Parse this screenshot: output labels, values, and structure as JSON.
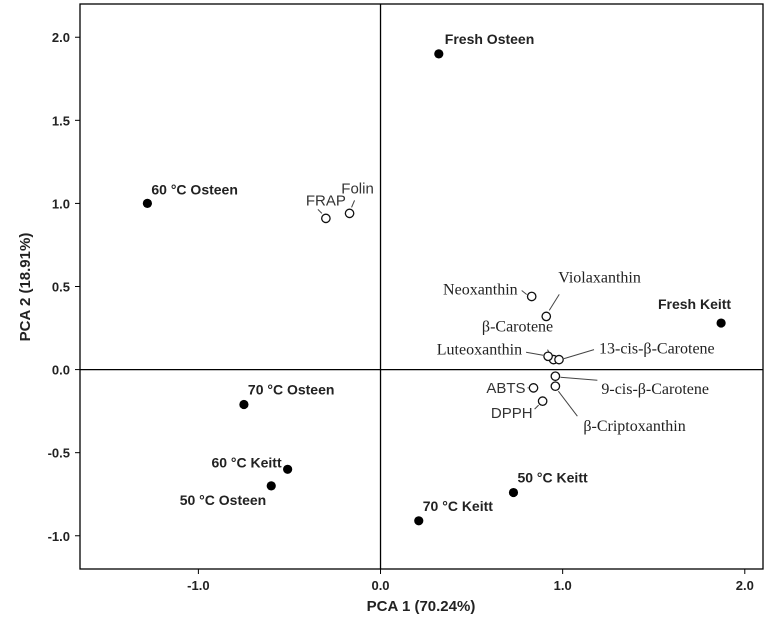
{
  "chart_data": {
    "type": "scatter",
    "xlabel": "PCA 1 (70.24%)",
    "ylabel": "PCA 2 (18.91%)",
    "xlim": [
      -1.65,
      2.1
    ],
    "ylim": [
      -1.2,
      2.2
    ],
    "x_ticks": [
      {
        "value": -1.0,
        "label": "-1.0"
      },
      {
        "value": 0.0,
        "label": "0.0"
      },
      {
        "value": 1.0,
        "label": "1.0"
      },
      {
        "value": 2.0,
        "label": "2.0"
      }
    ],
    "y_ticks": [
      {
        "value": 2.0,
        "label": "2.0"
      },
      {
        "value": 1.5,
        "label": "1.5"
      },
      {
        "value": 1.0,
        "label": "1.0"
      },
      {
        "value": 0.5,
        "label": "0.5"
      },
      {
        "value": 0.0,
        "label": "0.0"
      },
      {
        "value": -0.5,
        "label": "-0.5"
      },
      {
        "value": -1.0,
        "label": "-1.0"
      }
    ],
    "samples": [
      {
        "label": "Fresh Osteen",
        "x": 0.32,
        "y": 1.9
      },
      {
        "label": "60 °C Osteen",
        "x": -1.28,
        "y": 1.0
      },
      {
        "label": "Fresh Keitt",
        "x": 1.87,
        "y": 0.28
      },
      {
        "label": "70 °C Osteen",
        "x": -0.75,
        "y": -0.21
      },
      {
        "label": "60 °C Keitt",
        "x": -0.51,
        "y": -0.6
      },
      {
        "label": "50 °C Osteen",
        "x": -0.6,
        "y": -0.7
      },
      {
        "label": "50 °C Keitt",
        "x": 0.73,
        "y": -0.74
      },
      {
        "label": "70 °C Keitt",
        "x": 0.21,
        "y": -0.91
      }
    ],
    "variables": [
      {
        "label": "FRAP",
        "x": -0.3,
        "y": 0.91
      },
      {
        "label": "Folin",
        "x": -0.17,
        "y": 0.94
      },
      {
        "label": "Neoxanthin",
        "x": 0.83,
        "y": 0.44
      },
      {
        "label": "Violaxanthin",
        "x": 0.91,
        "y": 0.32
      },
      {
        "label": "β-Carotene",
        "x": 0.95,
        "y": 0.06
      },
      {
        "label": "Luteoxanthin",
        "x": 0.92,
        "y": 0.08
      },
      {
        "label": "13-cis-β-Carotene",
        "x": 0.98,
        "y": 0.06
      },
      {
        "label": "ABTS",
        "x": 0.84,
        "y": -0.11
      },
      {
        "label": "9-cis-β-Carotene",
        "x": 0.96,
        "y": -0.04
      },
      {
        "label": "DPPH",
        "x": 0.89,
        "y": -0.19
      },
      {
        "label": "β-Criptoxanthin",
        "x": 0.96,
        "y": -0.1
      }
    ]
  }
}
